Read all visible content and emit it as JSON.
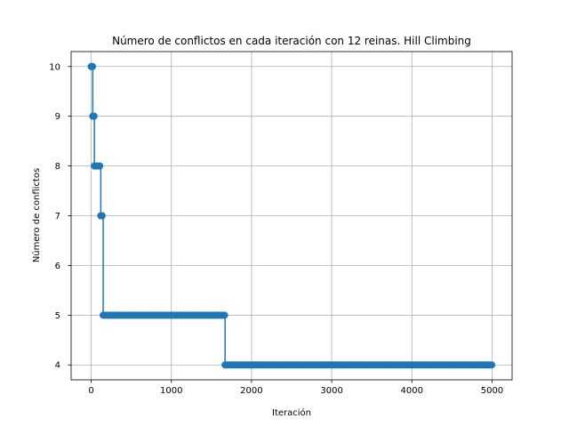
{
  "chart_data": {
    "type": "line",
    "title": "Número de conflictos en cada iteración con 12 reinas. Hill Climbing",
    "xlabel": "Iteración",
    "ylabel": "Número de conflictos",
    "xlim": [
      -250,
      5250
    ],
    "ylim": [
      3.7,
      10.3
    ],
    "xticks": [
      0,
      1000,
      2000,
      3000,
      4000,
      5000
    ],
    "yticks": [
      4,
      5,
      6,
      7,
      8,
      9,
      10
    ],
    "grid": true,
    "marker": "circle",
    "colors": {
      "series": "#1f77b4",
      "grid": "#b0b0b0"
    },
    "series": [
      {
        "segments": [
          {
            "value": 10,
            "x_start": 0,
            "x_end": 20
          },
          {
            "value": 9,
            "x_start": 20,
            "x_end": 40
          },
          {
            "value": 8,
            "x_start": 40,
            "x_end": 120
          },
          {
            "value": 7,
            "x_start": 120,
            "x_end": 150
          },
          {
            "value": 5,
            "x_start": 150,
            "x_end": 1670
          },
          {
            "value": 4,
            "x_start": 1670,
            "x_end": 5000
          }
        ]
      }
    ]
  }
}
